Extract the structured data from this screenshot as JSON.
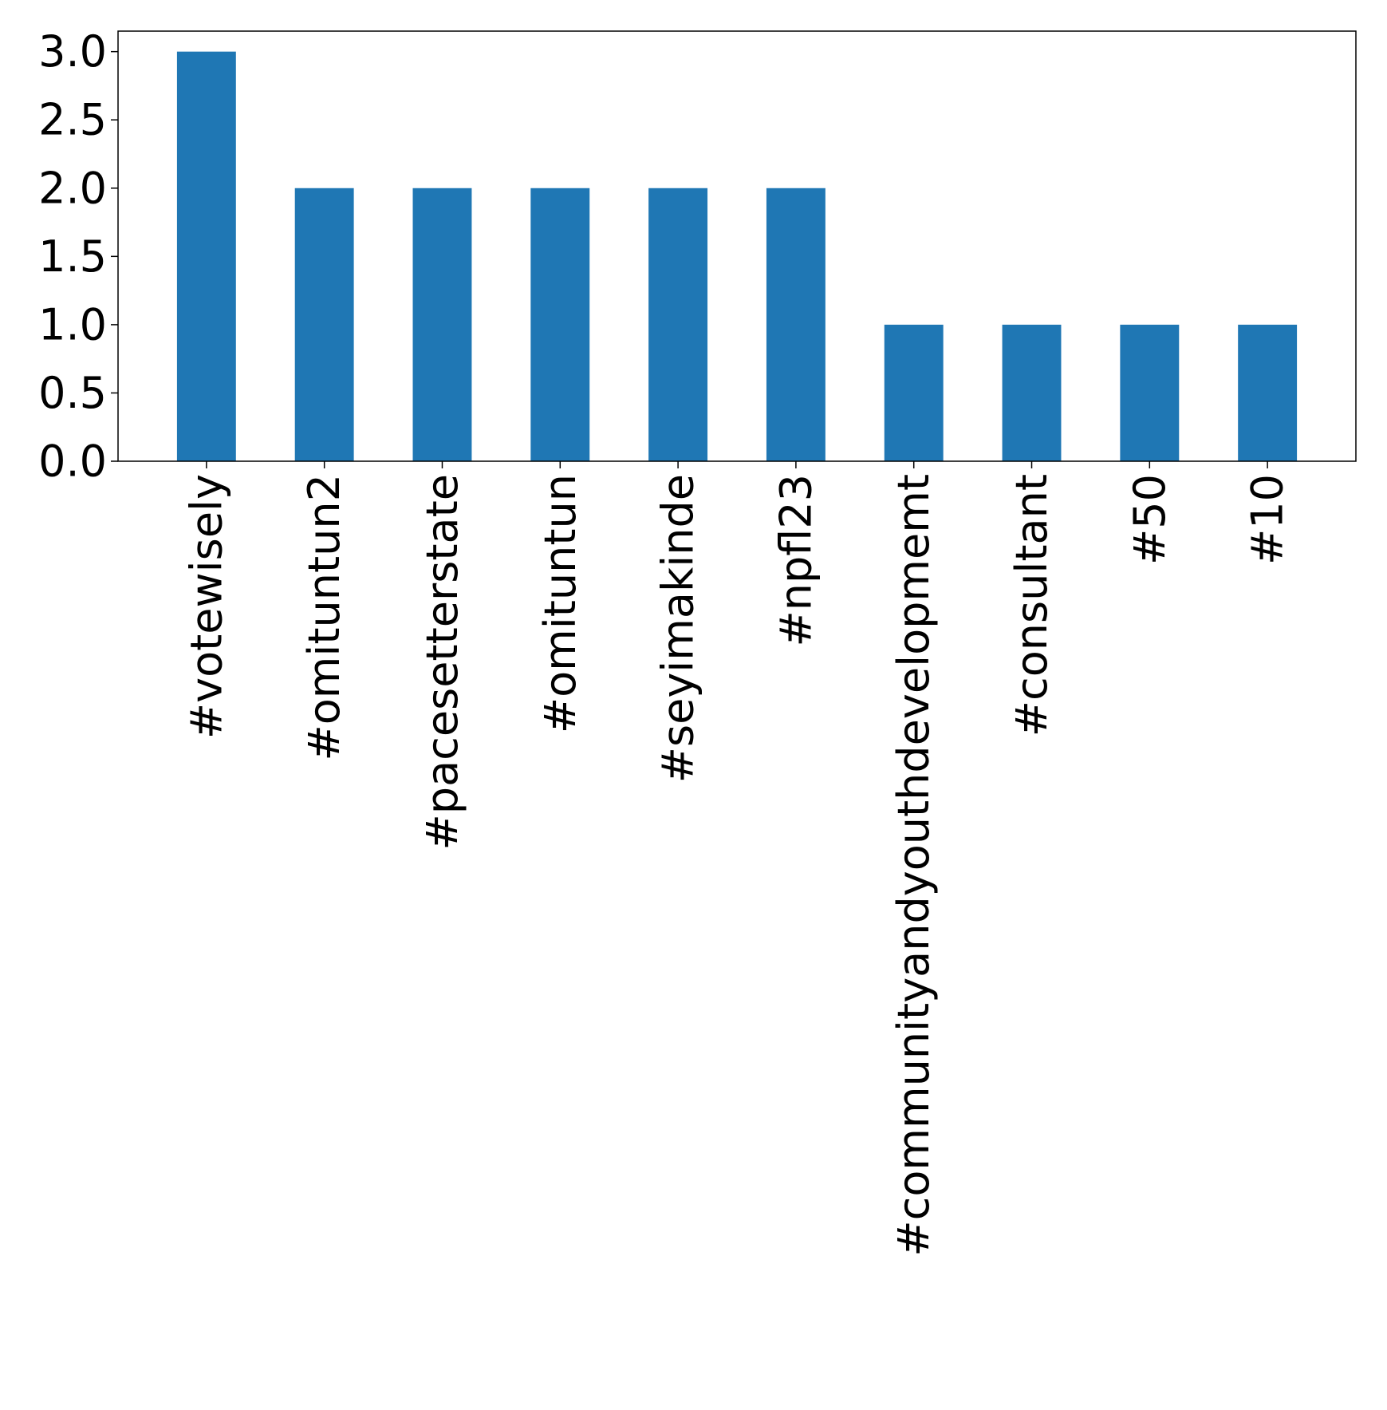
{
  "chart_data": {
    "type": "bar",
    "title": "",
    "xlabel": "",
    "ylabel": "",
    "categories": [
      "#votewisely",
      "#omituntun2",
      "#pacesetterstate",
      "#omituntun",
      "#seyimakinde",
      "#npfl23",
      "#communityandyouthdevelopmemt",
      "#consultant",
      "#50",
      "#10"
    ],
    "values": [
      3,
      2,
      2,
      2,
      2,
      2,
      1,
      1,
      1,
      1
    ],
    "ylim": [
      0,
      3.15
    ],
    "yticks": [
      0.0,
      0.5,
      1.0,
      1.5,
      2.0,
      2.5,
      3.0
    ],
    "ytick_labels": [
      "0.0",
      "0.5",
      "1.0",
      "1.5",
      "2.0",
      "2.5",
      "3.0"
    ],
    "bar_color": "#1f77b4",
    "grid": false,
    "legend": "none"
  }
}
